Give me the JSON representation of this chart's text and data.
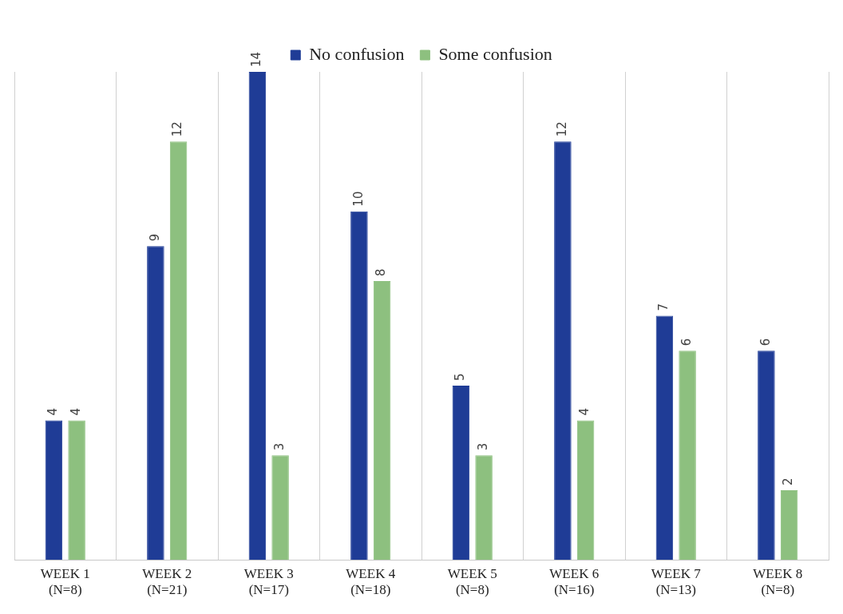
{
  "chart_data": {
    "type": "bar",
    "categories": [
      "WEEK 1\n(N=8)",
      "WEEK 2\n(N=21)",
      "WEEK 3\n(N=17)",
      "WEEK 4\n(N=18)",
      "WEEK 5\n(N=8)",
      "WEEK 6\n(N=16)",
      "WEEK 7\n(N=13)",
      "WEEK 8\n(N=8)"
    ],
    "series": [
      {
        "name": "No confusion",
        "color": "#1f3c96",
        "values": [
          4,
          9,
          14,
          10,
          5,
          12,
          7,
          6
        ]
      },
      {
        "name": "Some confusion",
        "color": "#8dc07f",
        "values": [
          4,
          12,
          3,
          8,
          3,
          4,
          6,
          2
        ]
      }
    ],
    "data_labels": true,
    "grid": "x",
    "legend": "top"
  }
}
